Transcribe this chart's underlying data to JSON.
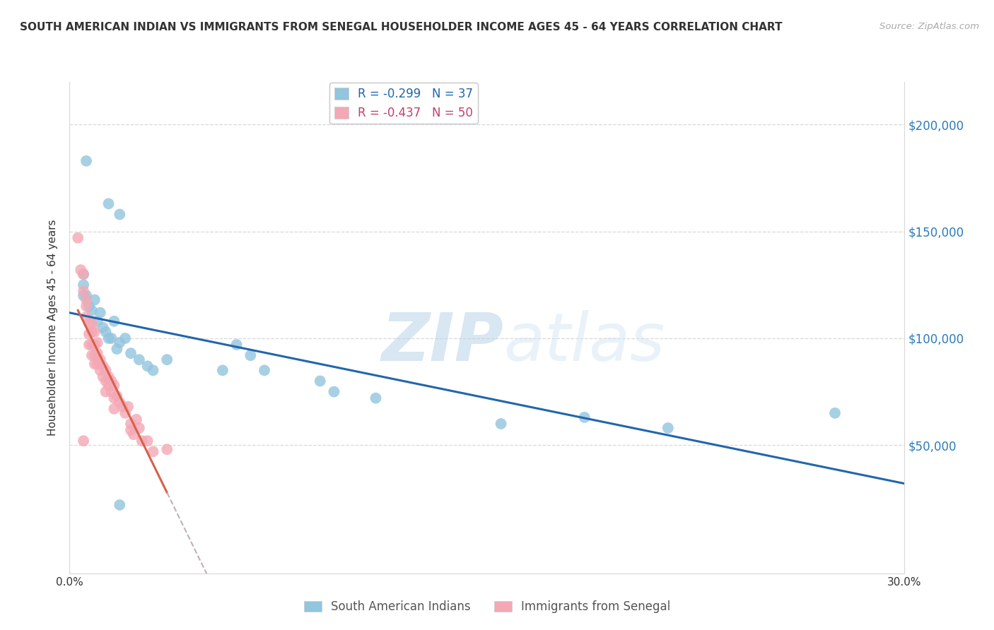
{
  "title": "SOUTH AMERICAN INDIAN VS IMMIGRANTS FROM SENEGAL HOUSEHOLDER INCOME AGES 45 - 64 YEARS CORRELATION CHART",
  "source": "Source: ZipAtlas.com",
  "ylabel": "Householder Income Ages 45 - 64 years",
  "xlim": [
    0.0,
    0.3
  ],
  "ylim": [
    -10000,
    220000
  ],
  "xticks": [
    0.0,
    0.05,
    0.1,
    0.15,
    0.2,
    0.25,
    0.3
  ],
  "xticklabels": [
    "0.0%",
    "",
    "",
    "",
    "",
    "",
    "30.0%"
  ],
  "yticks_right": [
    50000,
    100000,
    150000,
    200000
  ],
  "ytick_labels_right": [
    "$50,000",
    "$100,000",
    "$150,000",
    "$200,000"
  ],
  "blue_R": -0.299,
  "blue_N": 37,
  "pink_R": -0.437,
  "pink_N": 50,
  "blue_color": "#92c5de",
  "pink_color": "#f4a8b4",
  "blue_line_color": "#2166ac",
  "pink_line_color": "#d6604d",
  "watermark_zip": "ZIP",
  "watermark_atlas": "atlas",
  "legend_label_blue": "South American Indians",
  "legend_label_pink": "Immigrants from Senegal",
  "blue_x": [
    0.006,
    0.014,
    0.018,
    0.005,
    0.005,
    0.005,
    0.006,
    0.007,
    0.008,
    0.009,
    0.01,
    0.011,
    0.012,
    0.013,
    0.014,
    0.015,
    0.016,
    0.017,
    0.018,
    0.02,
    0.022,
    0.025,
    0.028,
    0.03,
    0.035,
    0.055,
    0.06,
    0.065,
    0.07,
    0.09,
    0.095,
    0.11,
    0.155,
    0.185,
    0.215,
    0.275,
    0.018
  ],
  "blue_y": [
    183000,
    163000,
    158000,
    130000,
    125000,
    120000,
    120000,
    115000,
    113000,
    118000,
    108000,
    112000,
    105000,
    103000,
    100000,
    100000,
    108000,
    95000,
    98000,
    100000,
    93000,
    90000,
    87000,
    85000,
    90000,
    85000,
    97000,
    92000,
    85000,
    80000,
    75000,
    72000,
    60000,
    63000,
    58000,
    65000,
    22000
  ],
  "pink_x": [
    0.003,
    0.004,
    0.005,
    0.005,
    0.006,
    0.006,
    0.006,
    0.007,
    0.007,
    0.007,
    0.008,
    0.008,
    0.008,
    0.008,
    0.009,
    0.009,
    0.009,
    0.009,
    0.01,
    0.01,
    0.01,
    0.011,
    0.011,
    0.012,
    0.012,
    0.013,
    0.013,
    0.013,
    0.014,
    0.014,
    0.015,
    0.015,
    0.016,
    0.016,
    0.016,
    0.017,
    0.018,
    0.019,
    0.02,
    0.021,
    0.022,
    0.022,
    0.023,
    0.024,
    0.025,
    0.026,
    0.028,
    0.03,
    0.035,
    0.005
  ],
  "pink_y": [
    147000,
    132000,
    130000,
    122000,
    118000,
    115000,
    110000,
    107000,
    102000,
    97000,
    107000,
    103000,
    97000,
    92000,
    103000,
    97000,
    92000,
    88000,
    98000,
    93000,
    88000,
    90000,
    85000,
    87000,
    82000,
    85000,
    80000,
    75000,
    82000,
    78000,
    80000,
    75000,
    78000,
    72000,
    67000,
    73000,
    70000,
    68000,
    65000,
    68000,
    60000,
    57000,
    55000,
    62000,
    58000,
    52000,
    52000,
    47000,
    48000,
    52000
  ],
  "grid_color": "#d8d8d8",
  "background_color": "#ffffff"
}
